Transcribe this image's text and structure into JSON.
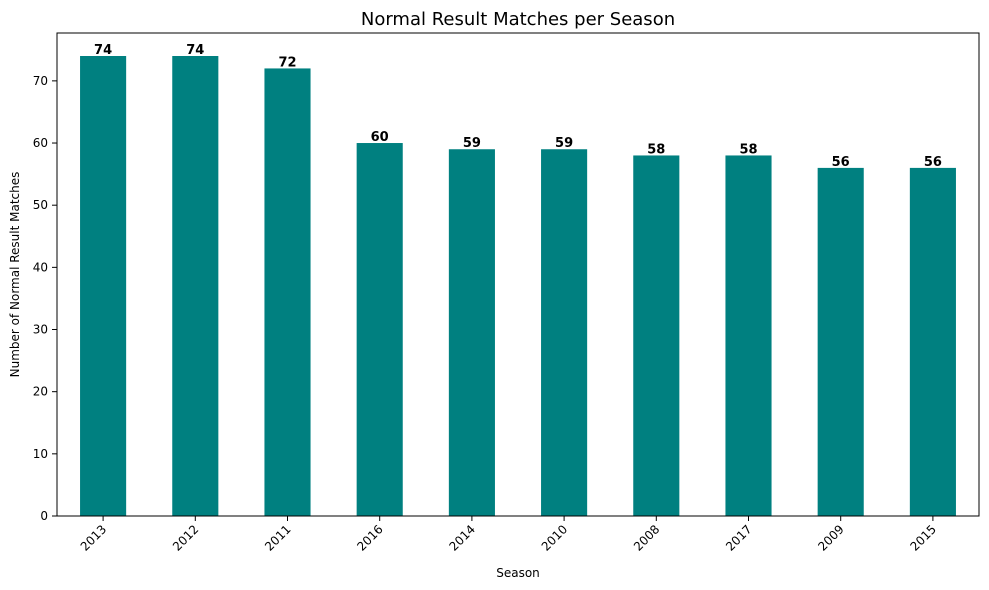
{
  "chart_data": {
    "type": "bar",
    "title": "Normal Result Matches per Season",
    "xlabel": "Season",
    "ylabel": "Number of Normal Result Matches",
    "categories": [
      "2013",
      "2012",
      "2011",
      "2016",
      "2014",
      "2010",
      "2008",
      "2017",
      "2009",
      "2015"
    ],
    "values": [
      74,
      74,
      72,
      60,
      59,
      59,
      58,
      58,
      56,
      56
    ],
    "data_labels": [
      "74",
      "74",
      "72",
      "60",
      "59",
      "59",
      "58",
      "58",
      "56",
      "56"
    ],
    "yticks": [
      0,
      10,
      20,
      30,
      40,
      50,
      60,
      70
    ],
    "ylim": [
      0,
      77.7
    ],
    "bar_color": "#008080",
    "grid": false,
    "legend": false
  }
}
